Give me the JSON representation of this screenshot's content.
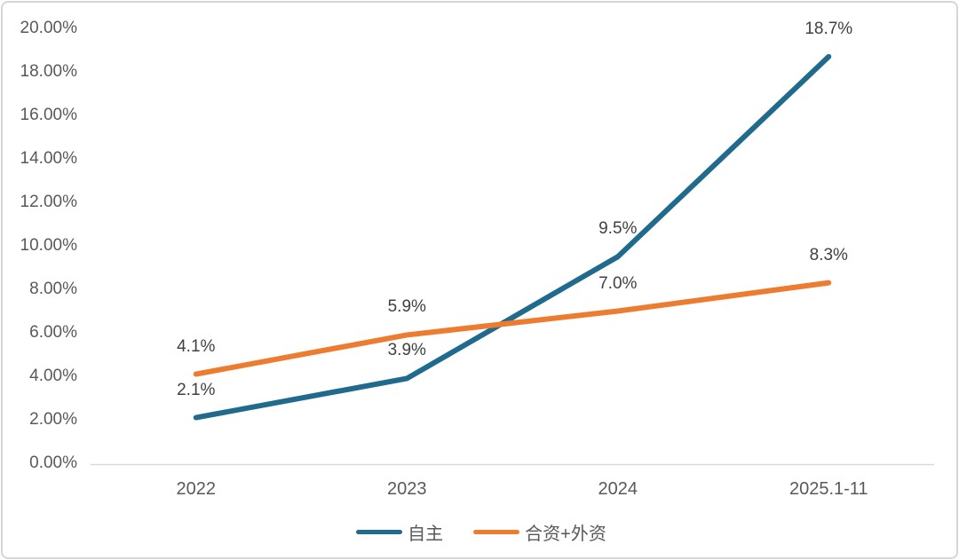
{
  "chart_data": {
    "type": "line",
    "categories": [
      "2022",
      "2023",
      "2024",
      "2025.1-11"
    ],
    "series": [
      {
        "name": "自主",
        "color": "#1f6a8d",
        "values": [
          2.1,
          3.9,
          9.5,
          18.7
        ],
        "point_labels": [
          "2.1%",
          "3.9%",
          "9.5%",
          "18.7%"
        ]
      },
      {
        "name": "合资+外资",
        "color": "#ed7c31",
        "values": [
          4.1,
          5.9,
          7.0,
          8.3
        ],
        "point_labels": [
          "4.1%",
          "5.9%",
          "7.0%",
          "8.3%"
        ]
      }
    ],
    "title": "",
    "xlabel": "",
    "ylabel": "",
    "ylim": [
      0,
      20
    ],
    "y_tick_labels": [
      "0.00%",
      "2.00%",
      "4.00%",
      "6.00%",
      "8.00%",
      "10.00%",
      "12.00%",
      "14.00%",
      "16.00%",
      "18.00%",
      "20.00%"
    ],
    "grid": false,
    "legend_position": "bottom"
  },
  "colors": {
    "axis_line": "#d9d9d9",
    "axis_text": "#595959",
    "data_label_text": "#404040",
    "card_border": "#d6d6d6",
    "background": "#ffffff"
  }
}
